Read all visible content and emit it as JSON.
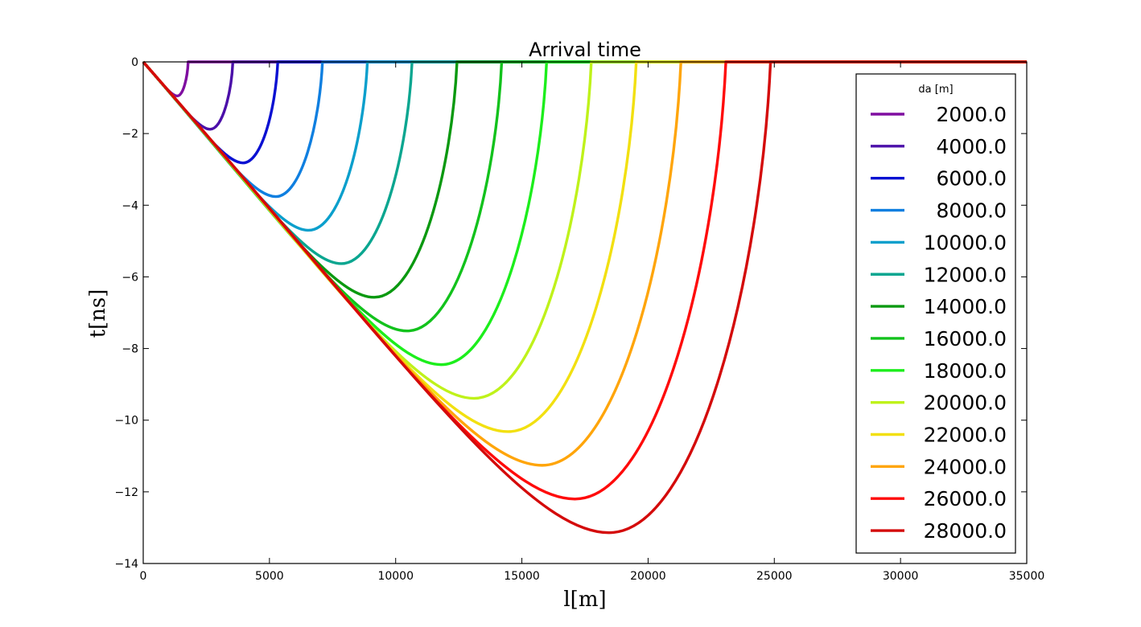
{
  "chart_data": {
    "type": "line",
    "title": "Arrival time",
    "xlabel": "l[m]",
    "ylabel": "t[ns]",
    "xlim": [
      0,
      35000
    ],
    "ylim": [
      -14,
      0
    ],
    "xticks": [
      0,
      5000,
      10000,
      15000,
      20000,
      25000,
      30000,
      35000
    ],
    "xtick_labels": [
      "0",
      "5000",
      "10000",
      "15000",
      "20000",
      "25000",
      "30000",
      "35000"
    ],
    "yticks": [
      0,
      -2,
      -4,
      -6,
      -8,
      -10,
      -12,
      -14
    ],
    "ytick_labels": [
      "0",
      "−2",
      "−4",
      "−6",
      "−8",
      "−10",
      "−12",
      "−14"
    ],
    "grid": false,
    "legend": {
      "title": "da [m]",
      "placement": "right"
    },
    "series": [
      {
        "name": "2000.0",
        "da": 2000,
        "color": "#7f0da0",
        "min_x": 1350,
        "min_y": -0.95,
        "zero_x": 1780
      },
      {
        "name": "4000.0",
        "da": 4000,
        "color": "#4b0fa9",
        "min_x": 2650,
        "min_y": -1.88,
        "zero_x": 3550
      },
      {
        "name": "6000.0",
        "da": 6000,
        "color": "#0a10d2",
        "min_x": 3950,
        "min_y": -2.82,
        "zero_x": 5330
      },
      {
        "name": "8000.0",
        "da": 8000,
        "color": "#0f7fe0",
        "min_x": 5250,
        "min_y": -3.76,
        "zero_x": 7100
      },
      {
        "name": "10000.0",
        "da": 10000,
        "color": "#0a9fcc",
        "min_x": 6550,
        "min_y": -4.7,
        "zero_x": 8880
      },
      {
        "name": "12000.0",
        "da": 12000,
        "color": "#0aa690",
        "min_x": 7850,
        "min_y": -5.63,
        "zero_x": 10650
      },
      {
        "name": "14000.0",
        "da": 14000,
        "color": "#0a9910",
        "min_x": 9150,
        "min_y": -6.57,
        "zero_x": 12430
      },
      {
        "name": "16000.0",
        "da": 16000,
        "color": "#12c21c",
        "min_x": 10450,
        "min_y": -7.51,
        "zero_x": 14200
      },
      {
        "name": "18000.0",
        "da": 18000,
        "color": "#1cee1c",
        "min_x": 11800,
        "min_y": -8.45,
        "zero_x": 15980
      },
      {
        "name": "20000.0",
        "da": 20000,
        "color": "#bff21a",
        "min_x": 13100,
        "min_y": -9.39,
        "zero_x": 17750
      },
      {
        "name": "22000.0",
        "da": 22000,
        "color": "#f2e010",
        "min_x": 14450,
        "min_y": -10.32,
        "zero_x": 19530
      },
      {
        "name": "24000.0",
        "da": 24000,
        "color": "#ffa50a",
        "min_x": 15800,
        "min_y": -11.26,
        "zero_x": 21300
      },
      {
        "name": "26000.0",
        "da": 26000,
        "color": "#ff0a0a",
        "min_x": 17100,
        "min_y": -12.2,
        "zero_x": 23080
      },
      {
        "name": "28000.0",
        "da": 28000,
        "color": "#d40a0a",
        "min_x": 18450,
        "min_y": -13.14,
        "zero_x": 24850
      }
    ]
  }
}
